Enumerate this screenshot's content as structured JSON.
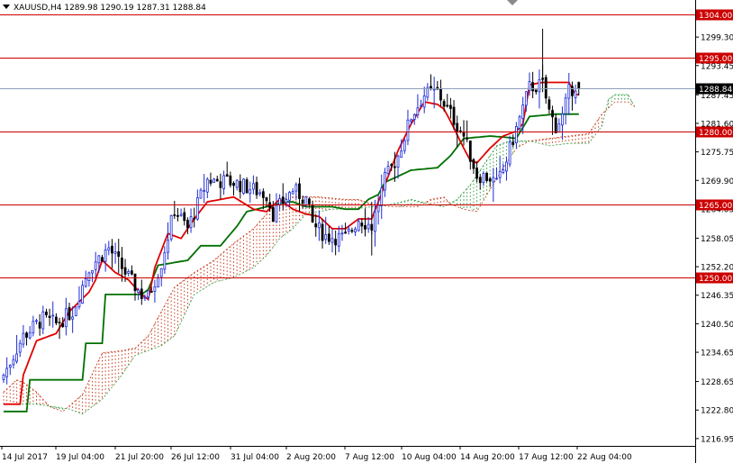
{
  "header": {
    "title": "XAUUSD,H4  1289.98 1290.19 1287.31 1288.84"
  },
  "colors": {
    "bull": "#1c2bd6",
    "bear": "#000000",
    "tenkan": "#e00000",
    "kijun": "#007000",
    "cloud_bull": "#2a9a3a",
    "cloud_bear": "#c63a1a",
    "hline": "#cc0000",
    "price_line": "#8da0b6",
    "price_label_bg": "#000000",
    "level_label_bg": "#cc0000"
  },
  "chart_data": {
    "type": "candlestick",
    "symbol": "XAUUSD",
    "timeframe": "H4",
    "current": {
      "open": 1289.98,
      "high": 1290.19,
      "low": 1287.31,
      "close": 1288.84
    },
    "ylim": [
      1215.45,
      1306.9
    ],
    "y_ticks": [
      "1299.30",
      "1293.45",
      "1287.45",
      "1281.60",
      "1275.75",
      "1269.90",
      "1264.05",
      "1258.05",
      "1252.20",
      "1246.35",
      "1240.50",
      "1234.65",
      "1228.65",
      "1222.80",
      "1216.95"
    ],
    "x_ticks": [
      "14 Jul 2017",
      "19 Jul 04:00",
      "21 Jul 20:00",
      "26 Jul 12:00",
      "31 Jul 04:00",
      "2 Aug 20:00",
      "7 Aug 12:00",
      "10 Aug 04:00",
      "14 Aug 20:00",
      "17 Aug 12:00",
      "22 Aug 04:00"
    ],
    "levels": [
      {
        "value": 1304.0,
        "label": "1304.00"
      },
      {
        "value": 1295.0,
        "label": "1295.00"
      },
      {
        "value": 1280.0,
        "label": "1280.00"
      },
      {
        "value": 1265.0,
        "label": "1265.00"
      },
      {
        "value": 1250.0,
        "label": "1250.00"
      }
    ],
    "price_label": "1288.84",
    "anchors": {
      "candles": [
        [
          0,
          1230.0
        ],
        [
          6,
          1238.0
        ],
        [
          12,
          1241.5
        ],
        [
          16,
          1240.5
        ],
        [
          21,
          1243.0
        ],
        [
          26,
          1252.0
        ],
        [
          32,
          1256.0
        ],
        [
          38,
          1250.0
        ],
        [
          42,
          1246.5
        ],
        [
          44,
          1246.0
        ],
        [
          48,
          1253.0
        ],
        [
          52,
          1264.0
        ],
        [
          56,
          1260.0
        ],
        [
          62,
          1270.0
        ],
        [
          70,
          1269.5
        ],
        [
          76,
          1268.0
        ],
        [
          80,
          1267.0
        ],
        [
          82,
          1263.0
        ],
        [
          88,
          1268.0
        ],
        [
          92,
          1266.0
        ],
        [
          94,
          1261.0
        ],
        [
          98,
          1258.5
        ],
        [
          104,
          1258.0
        ],
        [
          108,
          1262.0
        ],
        [
          112,
          1260.5
        ],
        [
          116,
          1270.0
        ],
        [
          120,
          1275.0
        ],
        [
          124,
          1283.0
        ],
        [
          128,
          1287.5
        ],
        [
          132,
          1288.0
        ],
        [
          136,
          1283.5
        ],
        [
          140,
          1279.0
        ],
        [
          144,
          1271.0
        ],
        [
          148,
          1270.5
        ],
        [
          150,
          1269.0
        ],
        [
          152,
          1272.0
        ],
        [
          156,
          1280.5
        ],
        [
          160,
          1289.0
        ],
        [
          164,
          1289.5
        ],
        [
          166,
          1284.0
        ],
        [
          168,
          1281.0
        ],
        [
          170,
          1283.0
        ],
        [
          172,
          1288.0
        ],
        [
          174,
          1289.5
        ],
        [
          175,
          1288.84
        ]
      ],
      "tenkan": [
        [
          0,
          1224.0
        ],
        [
          5,
          1224.0
        ],
        [
          6,
          1230.0
        ],
        [
          10,
          1237.0
        ],
        [
          16,
          1238.5
        ],
        [
          20,
          1243.0
        ],
        [
          26,
          1247.0
        ],
        [
          28,
          1249.5
        ],
        [
          30,
          1253.5
        ],
        [
          34,
          1251.0
        ],
        [
          38,
          1249.5
        ],
        [
          42,
          1246.5
        ],
        [
          44,
          1245.5
        ],
        [
          46,
          1252.0
        ],
        [
          50,
          1259.0
        ],
        [
          54,
          1258.0
        ],
        [
          58,
          1262.0
        ],
        [
          62,
          1265.5
        ],
        [
          70,
          1266.5
        ],
        [
          76,
          1264.0
        ],
        [
          80,
          1263.5
        ],
        [
          84,
          1266.0
        ],
        [
          88,
          1264.0
        ],
        [
          92,
          1263.0
        ],
        [
          96,
          1262.5
        ],
        [
          100,
          1260.0
        ],
        [
          104,
          1260.0
        ],
        [
          108,
          1262.0
        ],
        [
          112,
          1262.0
        ],
        [
          116,
          1269.0
        ],
        [
          120,
          1276.0
        ],
        [
          124,
          1281.5
        ],
        [
          128,
          1286.0
        ],
        [
          132,
          1285.5
        ],
        [
          134,
          1284.5
        ],
        [
          136,
          1282.0
        ],
        [
          140,
          1276.5
        ],
        [
          142,
          1274.0
        ],
        [
          144,
          1273.5
        ],
        [
          148,
          1276.5
        ],
        [
          152,
          1279.0
        ],
        [
          156,
          1280.0
        ],
        [
          158,
          1281.5
        ],
        [
          160,
          1289.5
        ],
        [
          164,
          1290.0
        ],
        [
          168,
          1290.0
        ],
        [
          172,
          1290.0
        ],
        [
          174,
          1287.5
        ]
      ],
      "kijun": [
        [
          0,
          1222.5
        ],
        [
          7,
          1222.5
        ],
        [
          8,
          1229.0
        ],
        [
          24,
          1229.0
        ],
        [
          25,
          1236.5
        ],
        [
          30,
          1236.5
        ],
        [
          31,
          1246.5
        ],
        [
          42,
          1246.5
        ],
        [
          44,
          1247.5
        ],
        [
          47,
          1252.5
        ],
        [
          56,
          1253.5
        ],
        [
          60,
          1256.5
        ],
        [
          66,
          1256.5
        ],
        [
          71,
          1260.5
        ],
        [
          74,
          1263.5
        ],
        [
          80,
          1264.5
        ],
        [
          86,
          1265.5
        ],
        [
          88,
          1265.5
        ],
        [
          92,
          1264.5
        ],
        [
          100,
          1264.5
        ],
        [
          104,
          1264.0
        ],
        [
          108,
          1264.0
        ],
        [
          111,
          1266.0
        ],
        [
          114,
          1267.0
        ],
        [
          116,
          1269.5
        ],
        [
          124,
          1272.0
        ],
        [
          132,
          1272.5
        ],
        [
          136,
          1275.0
        ],
        [
          140,
          1278.5
        ],
        [
          145,
          1278.8
        ],
        [
          148,
          1279.0
        ],
        [
          152,
          1278.8
        ],
        [
          156,
          1278.5
        ],
        [
          160,
          1283.0
        ],
        [
          168,
          1283.5
        ],
        [
          174,
          1283.5
        ]
      ],
      "span_a": [
        [
          0,
          1224.0
        ],
        [
          10,
          1224.0
        ],
        [
          20,
          1223.0
        ],
        [
          24,
          1222.0
        ],
        [
          30,
          1225.0
        ],
        [
          36,
          1230.0
        ],
        [
          40,
          1234.0
        ],
        [
          44,
          1235.0
        ],
        [
          48,
          1236.0
        ],
        [
          52,
          1238.0
        ],
        [
          58,
          1246.5
        ],
        [
          64,
          1249.0
        ],
        [
          70,
          1250.0
        ],
        [
          76,
          1252.0
        ],
        [
          80,
          1254.5
        ],
        [
          84,
          1258.0
        ],
        [
          88,
          1260.0
        ],
        [
          92,
          1263.0
        ],
        [
          96,
          1263.5
        ],
        [
          100,
          1264.0
        ],
        [
          106,
          1264.0
        ],
        [
          112,
          1264.5
        ],
        [
          118,
          1265.0
        ],
        [
          124,
          1266.0
        ],
        [
          130,
          1265.0
        ],
        [
          134,
          1264.5
        ],
        [
          138,
          1266.0
        ],
        [
          142,
          1269.0
        ],
        [
          146,
          1273.0
        ],
        [
          150,
          1277.0
        ],
        [
          154,
          1278.0
        ],
        [
          160,
          1278.0
        ],
        [
          166,
          1277.0
        ],
        [
          172,
          1277.5
        ],
        [
          178,
          1277.5
        ],
        [
          182,
          1281.0
        ],
        [
          184,
          1286.5
        ],
        [
          186,
          1287.5
        ],
        [
          190,
          1287.5
        ],
        [
          192,
          1285.0
        ]
      ],
      "span_b": [
        [
          0,
          1226.5
        ],
        [
          4,
          1229.0
        ],
        [
          6,
          1228.5
        ],
        [
          10,
          1226.5
        ],
        [
          14,
          1223.5
        ],
        [
          18,
          1222.5
        ],
        [
          24,
          1226.0
        ],
        [
          30,
          1234.5
        ],
        [
          36,
          1235.0
        ],
        [
          40,
          1235.5
        ],
        [
          44,
          1238.0
        ],
        [
          48,
          1243.0
        ],
        [
          52,
          1248.0
        ],
        [
          58,
          1251.0
        ],
        [
          64,
          1253.5
        ],
        [
          70,
          1257.0
        ],
        [
          76,
          1260.0
        ],
        [
          80,
          1263.0
        ],
        [
          84,
          1266.0
        ],
        [
          88,
          1266.5
        ],
        [
          96,
          1266.5
        ],
        [
          104,
          1266.0
        ],
        [
          108,
          1266.0
        ],
        [
          112,
          1265.0
        ],
        [
          118,
          1264.5
        ],
        [
          122,
          1264.5
        ],
        [
          126,
          1264.5
        ],
        [
          130,
          1266.0
        ],
        [
          134,
          1266.5
        ],
        [
          136,
          1265.0
        ],
        [
          140,
          1264.0
        ],
        [
          144,
          1263.5
        ],
        [
          148,
          1268.0
        ],
        [
          152,
          1272.5
        ],
        [
          156,
          1276.5
        ],
        [
          160,
          1278.0
        ],
        [
          166,
          1278.5
        ],
        [
          172,
          1279.0
        ],
        [
          178,
          1279.5
        ],
        [
          182,
          1283.5
        ],
        [
          186,
          1286.0
        ],
        [
          190,
          1286.0
        ],
        [
          192,
          1285.0
        ]
      ]
    },
    "grid": false
  }
}
